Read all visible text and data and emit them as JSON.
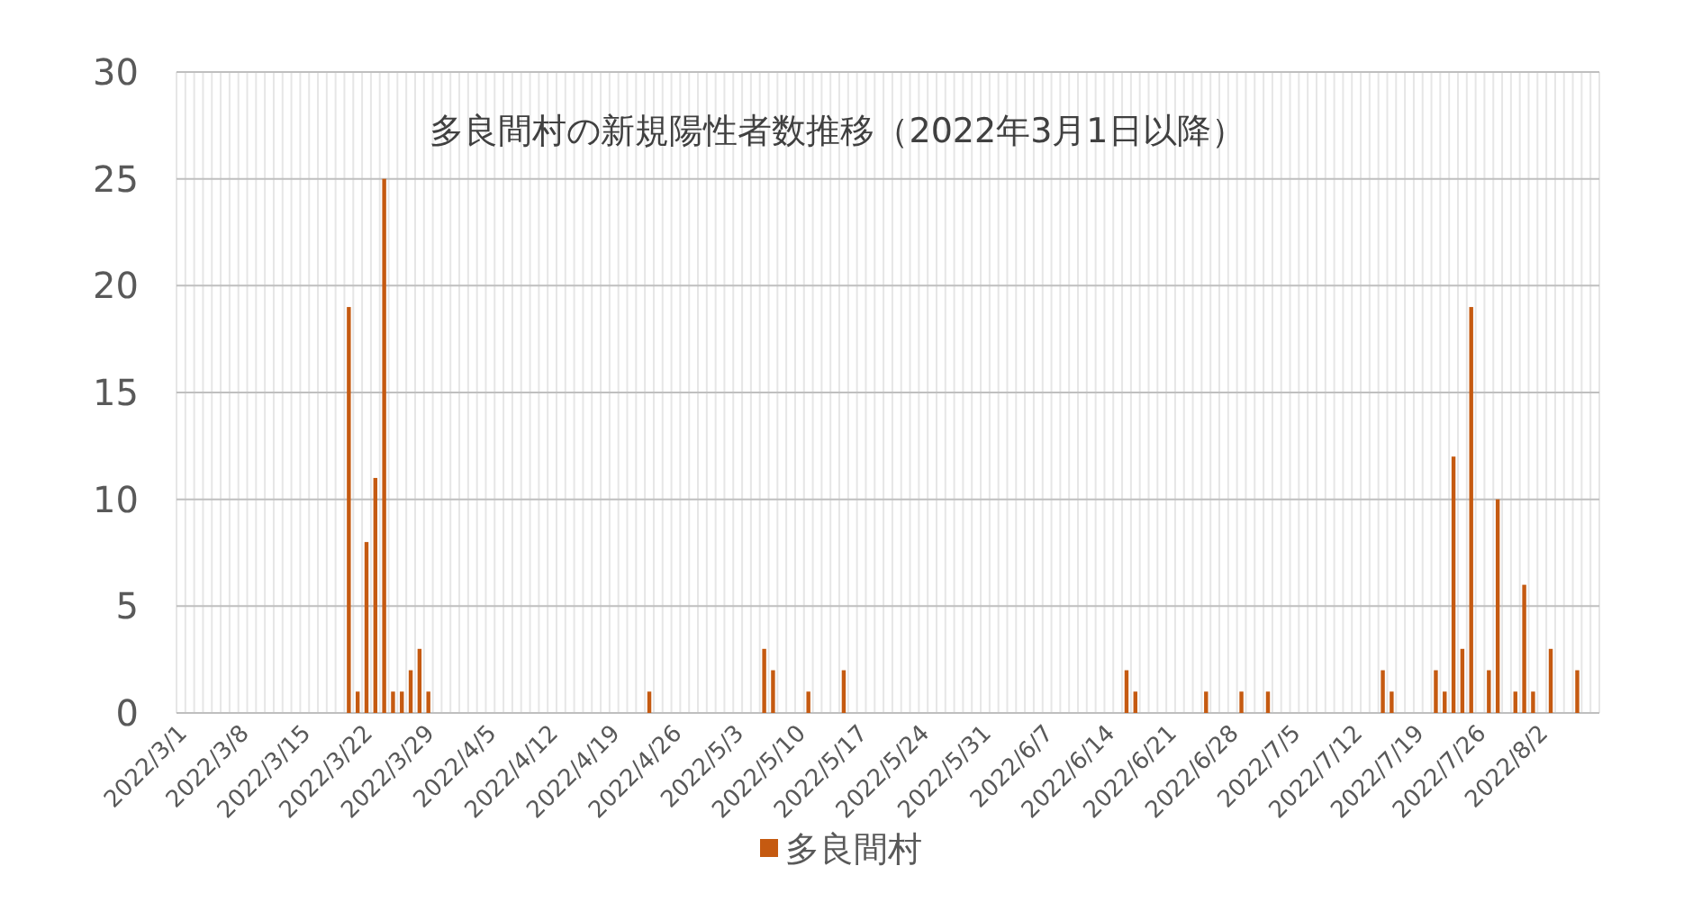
{
  "chart_data": {
    "type": "bar",
    "title": "多良間村の新規陽性者数推移（2022年3月1日以降）",
    "categories": [
      "2022/3/1",
      null,
      null,
      null,
      null,
      null,
      null,
      "2022/3/8",
      null,
      null,
      null,
      null,
      null,
      null,
      "2022/3/15",
      null,
      null,
      null,
      null,
      null,
      null,
      "2022/3/22",
      null,
      null,
      null,
      null,
      null,
      null,
      "2022/3/29",
      null,
      null,
      null,
      null,
      null,
      null,
      "2022/4/5",
      null,
      null,
      null,
      null,
      null,
      null,
      "2022/4/12",
      null,
      null,
      null,
      null,
      null,
      null,
      "2022/4/19",
      null,
      null,
      null,
      null,
      null,
      null,
      "2022/4/26",
      null,
      null,
      null,
      null,
      null,
      null,
      "2022/5/3",
      null,
      null,
      null,
      null,
      null,
      null,
      "2022/5/10",
      null,
      null,
      null,
      null,
      null,
      null,
      "2022/5/17",
      null,
      null,
      null,
      null,
      null,
      null,
      "2022/5/24",
      null,
      null,
      null,
      null,
      null,
      null,
      "2022/5/31",
      null,
      null,
      null,
      null,
      null,
      null,
      "2022/6/7",
      null,
      null,
      null,
      null,
      null,
      null,
      "2022/6/14",
      null,
      null,
      null,
      null,
      null,
      null,
      "2022/6/21",
      null,
      null,
      null,
      null,
      null,
      null,
      "2022/6/28",
      null,
      null,
      null,
      null,
      null,
      null,
      "2022/7/5",
      null,
      null,
      null,
      null,
      null,
      null,
      "2022/7/12",
      null,
      null,
      null,
      null,
      null,
      null,
      "2022/7/19",
      null,
      null,
      null,
      null,
      null,
      null,
      "2022/7/26",
      null,
      null,
      null,
      null,
      null,
      null,
      "2022/8/2",
      null,
      null,
      null,
      null,
      null,
      null
    ],
    "series": [
      {
        "name": "多良間村",
        "color": "#c55a11",
        "values": [
          0,
          0,
          0,
          0,
          0,
          0,
          0,
          0,
          0,
          0,
          0,
          0,
          0,
          0,
          0,
          0,
          0,
          0,
          0,
          19,
          1,
          8,
          11,
          25,
          1,
          1,
          2,
          3,
          1,
          0,
          0,
          0,
          0,
          0,
          0,
          0,
          0,
          0,
          0,
          0,
          0,
          0,
          0,
          0,
          0,
          0,
          0,
          0,
          0,
          0,
          0,
          0,
          0,
          1,
          0,
          0,
          0,
          0,
          0,
          0,
          0,
          0,
          0,
          0,
          0,
          0,
          3,
          2,
          0,
          0,
          0,
          1,
          0,
          0,
          0,
          2,
          0,
          0,
          0,
          0,
          0,
          0,
          0,
          0,
          0,
          0,
          0,
          0,
          0,
          0,
          0,
          0,
          0,
          0,
          0,
          0,
          0,
          0,
          0,
          0,
          0,
          0,
          0,
          0,
          0,
          0,
          0,
          2,
          1,
          0,
          0,
          0,
          0,
          0,
          0,
          0,
          1,
          0,
          0,
          0,
          1,
          0,
          0,
          1,
          0,
          0,
          0,
          0,
          0,
          0,
          0,
          0,
          0,
          0,
          0,
          0,
          2,
          1,
          0,
          0,
          0,
          0,
          2,
          1,
          12,
          3,
          19,
          0,
          2,
          10,
          0,
          1,
          6,
          1,
          0,
          3,
          0,
          0,
          2,
          0,
          0
        ]
      }
    ],
    "ylim": [
      0,
      30
    ],
    "yticks": [
      0,
      5,
      10,
      15,
      20,
      25,
      30
    ],
    "grid": true,
    "legend": "bottom"
  }
}
